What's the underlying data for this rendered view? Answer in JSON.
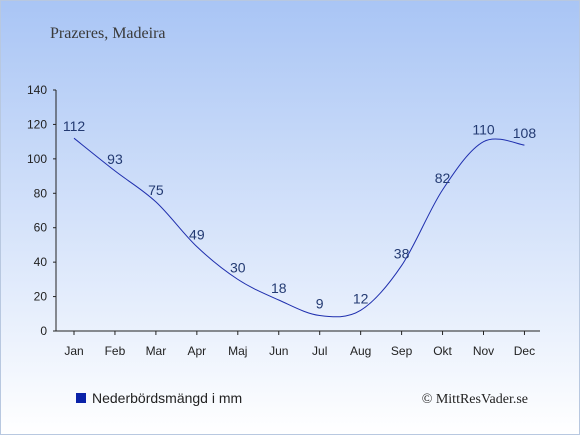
{
  "chart_data": {
    "type": "line",
    "title": "Prazeres, Madeira",
    "categories": [
      "Jan",
      "Feb",
      "Mar",
      "Apr",
      "Maj",
      "Jun",
      "Jul",
      "Aug",
      "Sep",
      "Okt",
      "Nov",
      "Dec"
    ],
    "series": [
      {
        "name": "Nederbördsmängd i mm",
        "values": [
          112,
          93,
          75,
          49,
          30,
          18,
          9,
          12,
          38,
          82,
          110,
          108
        ]
      }
    ],
    "xlabel": "",
    "ylabel": "",
    "ylim": [
      0,
      140
    ],
    "yticks": [
      0,
      20,
      40,
      60,
      80,
      100,
      120,
      140
    ],
    "grid": false,
    "legend_position": "bottom-left",
    "colors": {
      "line": "#1f2fae",
      "legend_marker": "#0a22a8",
      "background_top": "#a9c5f5",
      "background_bottom": "#ffffff",
      "data_label": "#233a72"
    }
  },
  "credit": "© MittResVader.se"
}
